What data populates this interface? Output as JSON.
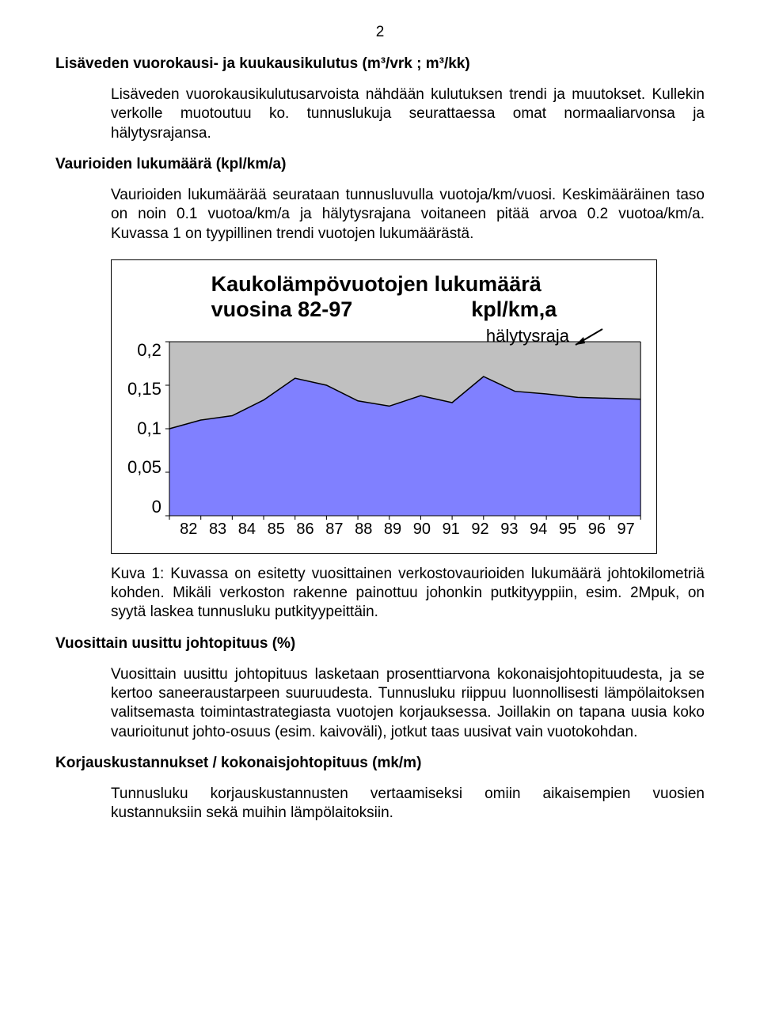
{
  "page_number": "2",
  "sections": {
    "s1": {
      "heading": "Lisäveden vuorokausi- ja kuukausikulutus (m³/vrk ; m³/kk)",
      "para": "Lisäveden vuorokausikulutusarvoista nähdään kulutuksen trendi ja muutokset. Kullekin verkolle muotoutuu ko. tunnuslukuja seurattaessa omat normaaliarvonsa ja hälytysrajansa."
    },
    "s2": {
      "heading": "Vaurioiden lukumäärä (kpl/km/a)",
      "para": "Vaurioiden lukumäärää seurataan tunnusluvulla vuotoja/km/vuosi. Keskimääräinen taso on noin 0.1 vuotoa/km/a ja hälytysrajana voitaneen pitää arvoa 0.2 vuotoa/km/a. Kuvassa 1 on tyypillinen trendi vuotojen lukumäärästä."
    },
    "caption1": "Kuva 1: Kuvassa on esitetty vuosittainen verkostovaurioiden lukumäärä johtokilometriä kohden. Mikäli verkoston rakenne painottuu johonkin putkityyppiin, esim. 2Mpuk, on syytä laskea tunnusluku putkityypeittäin.",
    "s3": {
      "heading": "Vuosittain uusittu johtopituus (%)",
      "para": "Vuosittain uusittu johtopituus lasketaan prosenttiarvona kokonaisjohtopituudesta, ja se kertoo saneeraustarpeen suuruudesta. Tunnusluku riippuu luonnollisesti lämpölaitoksen valitsemasta toimintastrategiasta vuotojen korjauksessa. Joillakin on tapana uusia koko vaurioitunut johto-osuus (esim. kaivoväli), jotkut taas uusivat vain vuotokohdan."
    },
    "s4": {
      "heading": "Korjauskustannukset / kokonaisjohtopituus (mk/m)",
      "para": "Tunnusluku korjauskustannusten vertaamiseksi omiin aikaisempien vuosien kustannuksiin sekä muihin lämpölaitoksiin."
    }
  },
  "chart": {
    "type": "area",
    "title_line1": "Kaukolämpövuotojen lukumäärä",
    "title_line2": "vuosina 82-97                    kpl/km,a",
    "annotation": "hälytysraja",
    "title_fontsize": 27,
    "x_categories": [
      "82",
      "83",
      "84",
      "85",
      "86",
      "87",
      "88",
      "89",
      "90",
      "91",
      "92",
      "93",
      "94",
      "95",
      "96",
      "97"
    ],
    "y_ticks": [
      "0,2",
      "0,15",
      "0,1",
      "0,05",
      "0"
    ],
    "ylim": [
      0,
      0.2
    ],
    "values": [
      0.1,
      0.11,
      0.115,
      0.133,
      0.158,
      0.15,
      0.132,
      0.126,
      0.138,
      0.13,
      0.16,
      0.143,
      0.14,
      0.136,
      0.135,
      0.134
    ],
    "fill_color": "#8080ff",
    "top_fill_color": "#c0c0c0",
    "line_color": "#000000",
    "background_color": "#ffffff",
    "grid_color": "#000000",
    "tick_fontsize": 21,
    "line_width": 1.5
  }
}
